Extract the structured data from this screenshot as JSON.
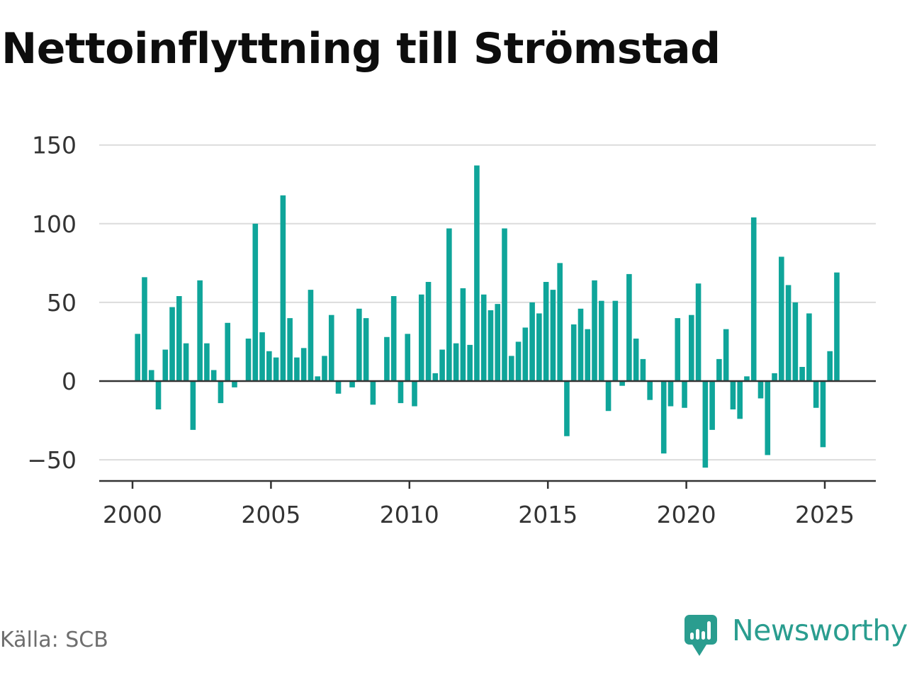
{
  "chart_data": {
    "type": "bar",
    "title": "Nettoinflyttning till Strömstad",
    "xlabel": "",
    "ylabel": "",
    "x_ticks": [
      2000,
      2005,
      2010,
      2015,
      2020,
      2025
    ],
    "y_ticks": [
      -50,
      0,
      50,
      100,
      150
    ],
    "ylim": [
      -63,
      150
    ],
    "grid": true,
    "bar_color": "#0fa59a",
    "series": [
      {
        "x": [
          "2000-Q1",
          "2000-Q2",
          "2000-Q3",
          "2000-Q4",
          "2001-Q1",
          "2001-Q2",
          "2001-Q3",
          "2001-Q4",
          "2002-Q1",
          "2002-Q2",
          "2002-Q3",
          "2002-Q4",
          "2003-Q1",
          "2003-Q2",
          "2003-Q3",
          "2003-Q4",
          "2004-Q1",
          "2004-Q2",
          "2004-Q3",
          "2004-Q4",
          "2005-Q1",
          "2005-Q2",
          "2005-Q3",
          "2005-Q4",
          "2006-Q1",
          "2006-Q2",
          "2006-Q3",
          "2006-Q4",
          "2007-Q1",
          "2007-Q2",
          "2007-Q3",
          "2007-Q4",
          "2008-Q1",
          "2008-Q2",
          "2008-Q3",
          "2008-Q4",
          "2009-Q1",
          "2009-Q2",
          "2009-Q3",
          "2009-Q4",
          "2010-Q1",
          "2010-Q2",
          "2010-Q3",
          "2010-Q4",
          "2011-Q1",
          "2011-Q2",
          "2011-Q3",
          "2011-Q4",
          "2012-Q1",
          "2012-Q2",
          "2012-Q3",
          "2012-Q4",
          "2013-Q1",
          "2013-Q2",
          "2013-Q3",
          "2013-Q4",
          "2014-Q1",
          "2014-Q2",
          "2014-Q3",
          "2014-Q4",
          "2015-Q1",
          "2015-Q2",
          "2015-Q3",
          "2015-Q4",
          "2016-Q1",
          "2016-Q2",
          "2016-Q3",
          "2016-Q4",
          "2017-Q1",
          "2017-Q2",
          "2017-Q3",
          "2017-Q4",
          "2018-Q1",
          "2018-Q2",
          "2018-Q3",
          "2018-Q4",
          "2019-Q1",
          "2019-Q2",
          "2019-Q3",
          "2019-Q4",
          "2020-Q1",
          "2020-Q2",
          "2020-Q3",
          "2020-Q4",
          "2021-Q1",
          "2021-Q2",
          "2021-Q3",
          "2021-Q4",
          "2022-Q1",
          "2022-Q2",
          "2022-Q3",
          "2022-Q4",
          "2023-Q1",
          "2023-Q2",
          "2023-Q3",
          "2023-Q4",
          "2024-Q1",
          "2024-Q2",
          "2024-Q3",
          "2024-Q4",
          "2025-Q1",
          "2025-Q2"
        ],
        "values": [
          30,
          66,
          7,
          -18,
          20,
          47,
          54,
          24,
          -31,
          64,
          24,
          7,
          -14,
          37,
          -4,
          0,
          27,
          100,
          31,
          19,
          15,
          118,
          40,
          15,
          21,
          58,
          3,
          16,
          42,
          -8,
          0,
          -4,
          46,
          40,
          -15,
          0,
          28,
          54,
          -14,
          30,
          -16,
          55,
          63,
          5,
          20,
          97,
          24,
          59,
          23,
          137,
          55,
          45,
          49,
          97,
          16,
          25,
          34,
          50,
          43,
          63,
          58,
          75,
          -35,
          36,
          46,
          33,
          64,
          51,
          -19,
          51,
          -3,
          68,
          27,
          14,
          -12,
          0,
          -46,
          -16,
          40,
          -17,
          42,
          62,
          -55,
          -31,
          14,
          33,
          -18,
          -24,
          3,
          104,
          -11,
          -47,
          5,
          79,
          61,
          50,
          9,
          43,
          -17,
          -42,
          19,
          69
        ]
      }
    ]
  },
  "source": "Källa: SCB",
  "brand": {
    "name": "Newsworthy",
    "icon": "newsworthy-logo-icon",
    "color": "#2a9d8f"
  }
}
